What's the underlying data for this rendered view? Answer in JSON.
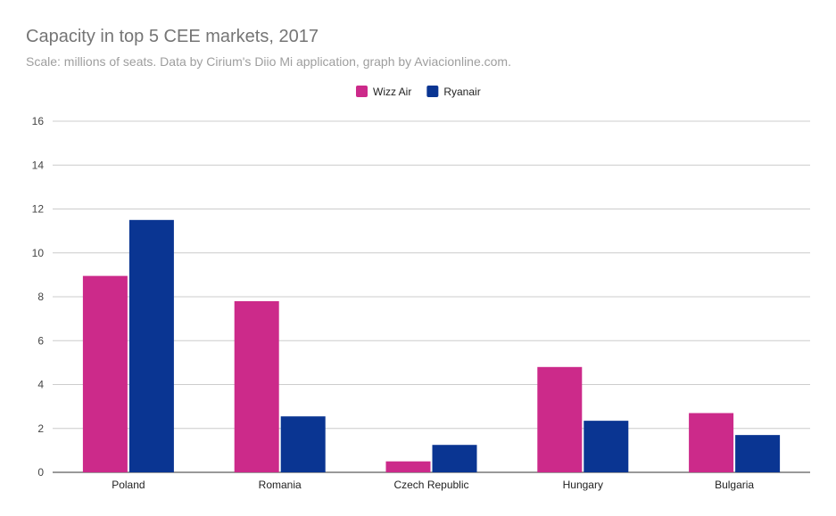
{
  "chart_data": {
    "type": "bar",
    "title": "Capacity in top 5 CEE markets, 2017",
    "subtitle": "Scale: millions of seats. Data by Cirium's Diio Mi application, graph by Aviacionline.com.",
    "xlabel": "",
    "ylabel": "",
    "categories": [
      "Poland",
      "Romania",
      "Czech Republic",
      "Hungary",
      "Bulgaria"
    ],
    "series": [
      {
        "name": "Wizz Air",
        "color": "#cc2a8a",
        "values": [
          8.95,
          7.8,
          0.5,
          4.8,
          2.7
        ]
      },
      {
        "name": "Ryanair",
        "color": "#0a3592",
        "values": [
          11.5,
          2.55,
          1.25,
          2.35,
          1.7
        ]
      }
    ],
    "ylim": [
      0,
      16
    ],
    "yticks": [
      "0",
      "2",
      "4",
      "6",
      "8",
      "10",
      "12",
      "14",
      "16"
    ],
    "grid": true,
    "legend_position": "top-center"
  }
}
